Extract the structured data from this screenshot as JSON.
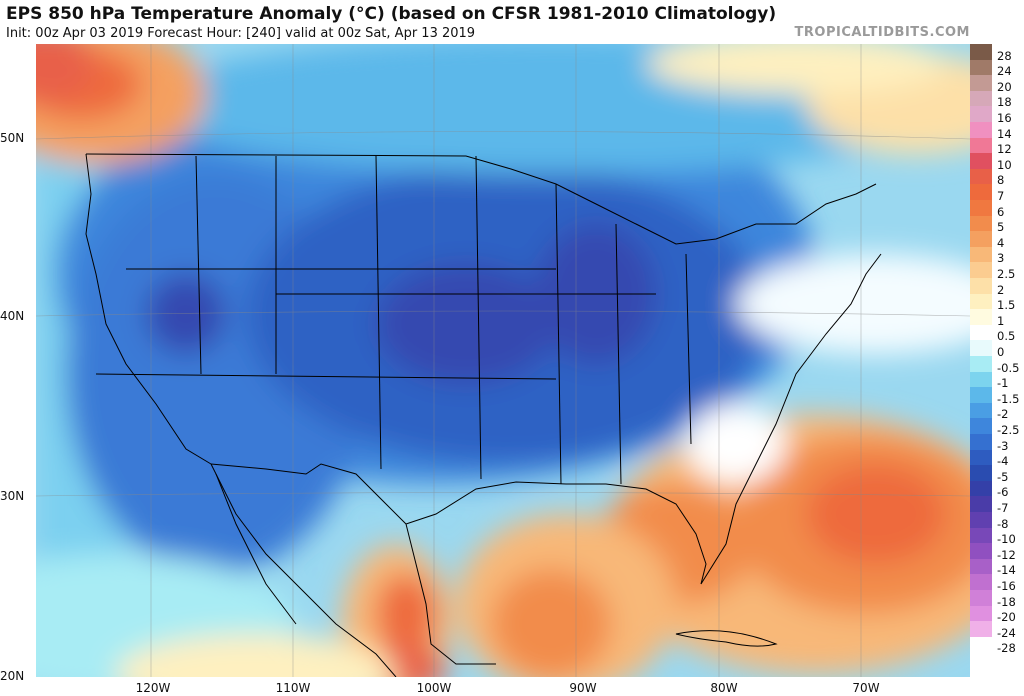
{
  "header": {
    "title": "EPS 850 hPa Temperature Anomaly (°C) (based on CFSR 1981-2010 Climatology)",
    "subtitle": "Init: 00z Apr 03 2019   Forecast Hour: [240]   valid at 00z Sat, Apr 13 2019",
    "brand": "TROPICALTIDBITS.COM"
  },
  "map": {
    "latitude_labels": [
      "50N",
      "40N",
      "30N",
      "20N"
    ],
    "longitude_labels": [
      "120W",
      "110W",
      "100W",
      "90W",
      "80W",
      "70W"
    ]
  },
  "colorbar": {
    "labels": [
      "28",
      "24",
      "20",
      "18",
      "16",
      "14",
      "12",
      "10",
      "8",
      "7",
      "6",
      "5",
      "4",
      "3",
      "2.5",
      "2",
      "1.5",
      "1",
      "0.5",
      "0",
      "-0.5",
      "-1",
      "-1.5",
      "-2",
      "-2.5",
      "-3",
      "-4",
      "-5",
      "-6",
      "-7",
      "-8",
      "-10",
      "-12",
      "-14",
      "-16",
      "-18",
      "-20",
      "-24",
      "-28"
    ],
    "colors": [
      "#7a5a48",
      "#a07a68",
      "#c39a94",
      "#d6a8b8",
      "#e0a8c8",
      "#f090c0",
      "#f07896",
      "#e05060",
      "#e86048",
      "#ee6a3c",
      "#f07840",
      "#f28c4c",
      "#f4a060",
      "#f8b878",
      "#fbcc90",
      "#fde0a8",
      "#fef0c0",
      "#fffbe0",
      "#ffffff",
      "#e8fafc",
      "#a8ecf4",
      "#7cd4ee",
      "#5cb8ea",
      "#4a9ee4",
      "#3e86dc",
      "#3570d0",
      "#2e5cc0",
      "#2a4cb0",
      "#3440a8",
      "#4a3ca8",
      "#6040b0",
      "#7848b8",
      "#9050c0",
      "#a860c8",
      "#c070d0",
      "#d080d8",
      "#e090e0",
      "#f0b0e8"
    ]
  }
}
